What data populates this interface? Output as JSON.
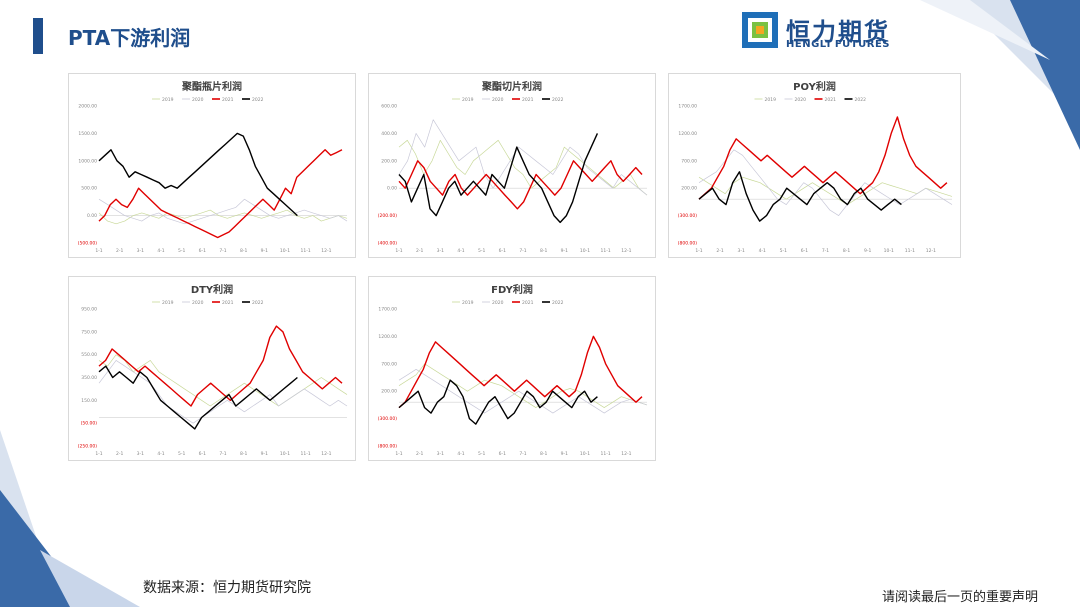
{
  "page_title": "PTA下游利润",
  "logo": {
    "cn": "恒力期货",
    "en": "HENGLI FUTURES"
  },
  "footer": {
    "source": "数据来源：恒力期货研究院",
    "disclaimer": "请阅读最后一页的重要声明"
  },
  "colors": {
    "brand": "#1f4e8c",
    "s2019": "#c9d99a",
    "s2020": "#c8c8d8",
    "s2021": "#e00000",
    "s2022": "#000000"
  },
  "chart_data": [
    {
      "type": "line",
      "title": "聚酯瓶片利润",
      "yticks": [
        "2000.00",
        "1500.00",
        "1000.00",
        "500.00",
        "0.00",
        "(500.00)"
      ],
      "ylim": [
        -500,
        2000
      ],
      "xticks": [
        "1-1",
        "2-1",
        "3-1",
        "4-1",
        "5-1",
        "6-1",
        "7-1",
        "8-1",
        "9-1",
        "10-1",
        "11-1",
        "12-1"
      ],
      "legend": [
        "2019",
        "2020",
        "2021",
        "2022"
      ],
      "series": [
        {
          "name": "2019",
          "values": [
            50,
            -100,
            -150,
            -100,
            0,
            50,
            0,
            -50,
            50,
            0,
            -50,
            0,
            50,
            100,
            0,
            -50,
            0,
            50,
            0,
            -50,
            0,
            50,
            100,
            0,
            -50,
            0,
            -100,
            -50,
            0,
            -50
          ]
        },
        {
          "name": "2020",
          "values": [
            300,
            200,
            100,
            0,
            -50,
            -100,
            0,
            50,
            -50,
            -100,
            -150,
            -100,
            -50,
            0,
            50,
            100,
            150,
            300,
            200,
            100,
            0,
            -50,
            0,
            50,
            100,
            50,
            0,
            -50,
            0,
            -100
          ]
        },
        {
          "name": "2021",
          "values": [
            -100,
            0,
            200,
            300,
            200,
            150,
            300,
            500,
            400,
            300,
            200,
            100,
            50,
            0,
            -50,
            -100,
            -150,
            -200,
            -250,
            -300,
            -350,
            -400,
            -350,
            -300,
            -200,
            -100,
            0,
            100,
            200,
            300,
            200,
            100,
            300,
            500,
            400,
            700,
            800,
            900,
            1000,
            1100,
            1200,
            1100,
            1150,
            1200
          ]
        },
        {
          "name": "2022",
          "values": [
            1000,
            1100,
            1200,
            1000,
            900,
            700,
            800,
            750,
            700,
            650,
            600,
            500,
            550,
            500,
            600,
            700,
            800,
            900,
            1000,
            1100,
            1200,
            1300,
            1400,
            1500,
            1450,
            1200,
            900,
            700,
            500,
            400,
            300,
            200,
            100,
            0
          ]
        }
      ]
    },
    {
      "type": "line",
      "title": "聚酯切片利润",
      "yticks": [
        "600.00",
        "400.00",
        "200.00",
        "0.00",
        "(200.00)",
        "(400.00)"
      ],
      "ylim": [
        -400,
        600
      ],
      "xticks": [
        "1-1",
        "2-1",
        "3-1",
        "4-1",
        "5-1",
        "6-1",
        "7-1",
        "8-1",
        "9-1",
        "10-1",
        "11-1",
        "12-1"
      ],
      "legend": [
        "2019",
        "2020",
        "2021",
        "2022"
      ],
      "series": [
        {
          "name": "2019",
          "values": [
            300,
            350,
            250,
            100,
            200,
            350,
            250,
            150,
            100,
            200,
            250,
            300,
            350,
            250,
            150,
            100,
            0,
            50,
            100,
            150,
            300,
            250,
            200,
            150,
            100,
            50,
            0,
            50,
            100,
            0,
            -50
          ]
        },
        {
          "name": "2020",
          "values": [
            100,
            200,
            400,
            300,
            500,
            400,
            300,
            200,
            250,
            300,
            100,
            0,
            100,
            200,
            300,
            250,
            200,
            150,
            100,
            200,
            300,
            250,
            150,
            100,
            50,
            0,
            100,
            50,
            0,
            -50
          ]
        },
        {
          "name": "2021",
          "values": [
            50,
            0,
            100,
            200,
            150,
            50,
            0,
            -50,
            50,
            100,
            0,
            -50,
            0,
            50,
            100,
            50,
            0,
            -50,
            -100,
            -150,
            -100,
            0,
            100,
            50,
            0,
            -50,
            0,
            100,
            200,
            150,
            100,
            50,
            100,
            150,
            200,
            100,
            50,
            100,
            150,
            100
          ]
        },
        {
          "name": "2022",
          "values": [
            100,
            50,
            -100,
            0,
            100,
            -150,
            -200,
            -100,
            0,
            50,
            -50,
            0,
            50,
            0,
            -50,
            100,
            50,
            0,
            150,
            300,
            200,
            100,
            50,
            0,
            -100,
            -200,
            -250,
            -200,
            -100,
            50,
            200,
            300,
            400
          ]
        }
      ]
    },
    {
      "type": "line",
      "title": "POY利润",
      "yticks": [
        "1700.00",
        "1200.00",
        "700.00",
        "200.00",
        "(300.00)",
        "(800.00)"
      ],
      "ylim": [
        -800,
        1700
      ],
      "xticks": [
        "1-1",
        "2-1",
        "3-1",
        "4-1",
        "5-1",
        "6-1",
        "7-1",
        "8-1",
        "9-1",
        "10-1",
        "11-1",
        "12-1"
      ],
      "legend": [
        "2019",
        "2020",
        "2021",
        "2022"
      ],
      "series": [
        {
          "name": "2019",
          "values": [
            400,
            300,
            200,
            100,
            300,
            400,
            350,
            300,
            200,
            100,
            0,
            100,
            200,
            300,
            200,
            100,
            0,
            -100,
            0,
            100,
            200,
            300,
            250,
            200,
            150,
            100,
            200,
            150,
            100,
            50
          ]
        },
        {
          "name": "2020",
          "values": [
            300,
            400,
            500,
            700,
            900,
            800,
            600,
            400,
            200,
            0,
            -100,
            100,
            300,
            200,
            0,
            -200,
            -300,
            -100,
            100,
            300,
            200,
            100,
            0,
            -100,
            0,
            100,
            200,
            100,
            0,
            -100
          ]
        },
        {
          "name": "2021",
          "values": [
            0,
            100,
            200,
            400,
            600,
            900,
            1100,
            1000,
            900,
            800,
            700,
            800,
            700,
            600,
            500,
            400,
            500,
            600,
            500,
            400,
            300,
            400,
            500,
            400,
            300,
            200,
            100,
            200,
            300,
            500,
            800,
            1200,
            1500,
            1100,
            800,
            600,
            500,
            400,
            300,
            200,
            300
          ]
        },
        {
          "name": "2022",
          "values": [
            0,
            100,
            200,
            0,
            -100,
            300,
            500,
            100,
            -200,
            -400,
            -300,
            -100,
            0,
            200,
            100,
            0,
            -100,
            100,
            200,
            300,
            200,
            0,
            -100,
            100,
            200,
            0,
            -100,
            -200,
            -100,
            0,
            -100
          ]
        }
      ]
    },
    {
      "type": "line",
      "title": "DTY利润",
      "yticks": [
        "950.00",
        "750.00",
        "550.00",
        "350.00",
        "150.00",
        "(50.00)",
        "(250.00)"
      ],
      "ylim": [
        -250,
        950
      ],
      "xticks": [
        "1-1",
        "2-1",
        "3-1",
        "4-1",
        "5-1",
        "6-1",
        "7-1",
        "8-1",
        "9-1",
        "10-1",
        "11-1",
        "12-1"
      ],
      "legend": [
        "2019",
        "2020",
        "2021",
        "2022"
      ],
      "series": [
        {
          "name": "2019",
          "values": [
            500,
            450,
            550,
            500,
            400,
            450,
            500,
            400,
            350,
            300,
            250,
            200,
            150,
            100,
            150,
            200,
            250,
            300,
            250,
            200,
            150,
            100,
            150,
            200,
            250,
            300,
            350,
            300,
            250,
            200
          ]
        },
        {
          "name": "2020",
          "values": [
            300,
            400,
            500,
            450,
            400,
            350,
            300,
            200,
            100,
            50,
            0,
            -50,
            0,
            50,
            100,
            150,
            100,
            50,
            100,
            150,
            200,
            100,
            150,
            200,
            250,
            200,
            150,
            100,
            150,
            100
          ]
        },
        {
          "name": "2021",
          "values": [
            450,
            500,
            600,
            550,
            500,
            450,
            400,
            450,
            400,
            350,
            300,
            250,
            200,
            150,
            100,
            200,
            250,
            300,
            250,
            200,
            150,
            200,
            250,
            300,
            400,
            500,
            700,
            800,
            750,
            600,
            500,
            400,
            350,
            300,
            250,
            300,
            350,
            300
          ]
        },
        {
          "name": "2022",
          "values": [
            400,
            450,
            350,
            400,
            350,
            300,
            400,
            350,
            250,
            150,
            100,
            50,
            0,
            -50,
            -100,
            0,
            50,
            100,
            150,
            200,
            100,
            150,
            200,
            250,
            200,
            150,
            200,
            250,
            300,
            350
          ]
        }
      ]
    },
    {
      "type": "line",
      "title": "FDY利润",
      "yticks": [
        "1700.00",
        "1200.00",
        "700.00",
        "200.00",
        "(300.00)",
        "(800.00)"
      ],
      "ylim": [
        -800,
        1700
      ],
      "xticks": [
        "1-1",
        "2-1",
        "3-1",
        "4-1",
        "5-1",
        "6-1",
        "7-1",
        "8-1",
        "9-1",
        "10-1",
        "11-1",
        "12-1"
      ],
      "legend": [
        "2019",
        "2020",
        "2021",
        "2022"
      ],
      "series": [
        {
          "name": "2019",
          "values": [
            300,
            400,
            500,
            700,
            600,
            500,
            400,
            300,
            200,
            300,
            400,
            350,
            300,
            200,
            100,
            0,
            -100,
            0,
            100,
            200,
            250,
            200,
            100,
            0,
            -100,
            0,
            100,
            50,
            0,
            -50
          ]
        },
        {
          "name": "2020",
          "values": [
            400,
            500,
            600,
            500,
            400,
            300,
            200,
            100,
            0,
            -100,
            -200,
            -100,
            0,
            100,
            200,
            100,
            0,
            -100,
            -200,
            -100,
            0,
            100,
            0,
            -100,
            -200,
            -100,
            0,
            50,
            0,
            -50
          ]
        },
        {
          "name": "2021",
          "values": [
            -100,
            0,
            200,
            400,
            600,
            900,
            1100,
            1000,
            900,
            800,
            700,
            600,
            500,
            400,
            300,
            400,
            500,
            400,
            300,
            200,
            300,
            400,
            300,
            200,
            100,
            200,
            300,
            200,
            100,
            200,
            500,
            900,
            1200,
            1000,
            700,
            500,
            300,
            200,
            100,
            0,
            100
          ]
        },
        {
          "name": "2022",
          "values": [
            -100,
            0,
            100,
            200,
            -100,
            -200,
            0,
            100,
            400,
            300,
            100,
            -300,
            -400,
            -200,
            0,
            100,
            -100,
            -300,
            -200,
            0,
            200,
            100,
            -100,
            0,
            200,
            100,
            0,
            -100,
            100,
            200,
            0,
            100
          ]
        }
      ]
    }
  ]
}
